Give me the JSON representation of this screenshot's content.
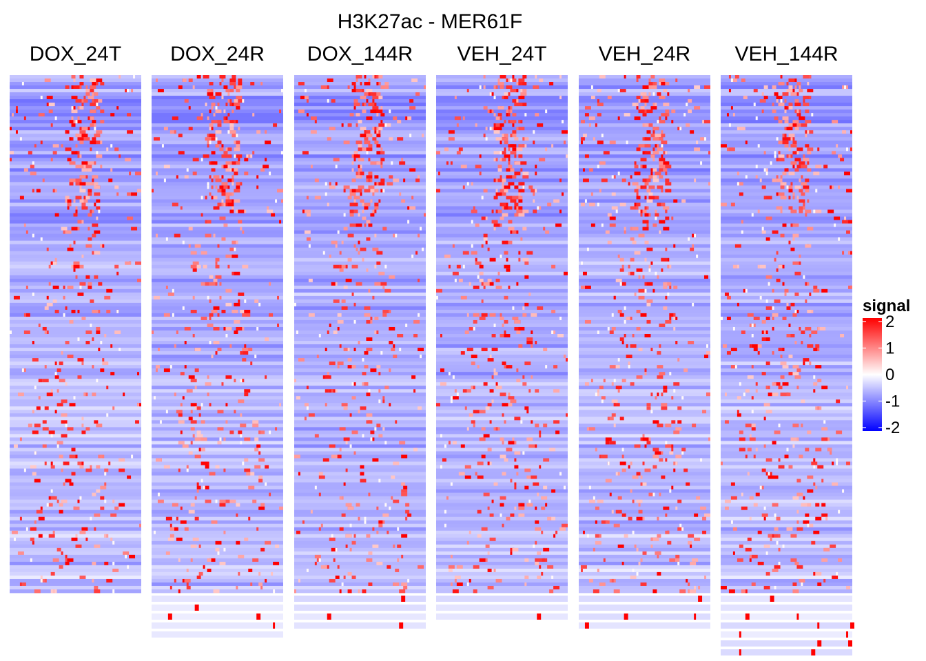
{
  "chart_data": {
    "type": "heatmap",
    "title": "H3K27ac - MER61F",
    "panels": [
      {
        "name": "DOX_24T",
        "extra_rows": []
      },
      {
        "name": "DOX_24R",
        "extra_rows": [
          "sparse",
          "sparse",
          "sparse",
          "sparse",
          "sparse"
        ]
      },
      {
        "name": "DOX_144R",
        "extra_rows": [
          "sparse",
          "sparse",
          "sparse",
          "sparse"
        ]
      },
      {
        "name": "VEH_24T",
        "extra_rows": [
          "sparse",
          "sparse",
          "sparse"
        ]
      },
      {
        "name": "VEH_24R",
        "extra_rows": [
          "sparse",
          "sparse",
          "sparse",
          "sparse"
        ]
      },
      {
        "name": "VEH_144R",
        "extra_rows": [
          "sparse",
          "sparse",
          "sparse",
          "sparse",
          "sparse",
          "sparse",
          "sparse"
        ]
      }
    ],
    "n_main_rows": 150,
    "n_cols": 64,
    "legend": {
      "title": "signal",
      "ticks": [
        2,
        1,
        0,
        -1,
        -2
      ],
      "tick_labels": [
        "2",
        "1",
        "0",
        "-1",
        "-2"
      ],
      "range": [
        -2,
        2
      ],
      "colors": {
        "low": "#0000ff",
        "mid": "#ffffff",
        "high": "#ff0000"
      }
    }
  }
}
